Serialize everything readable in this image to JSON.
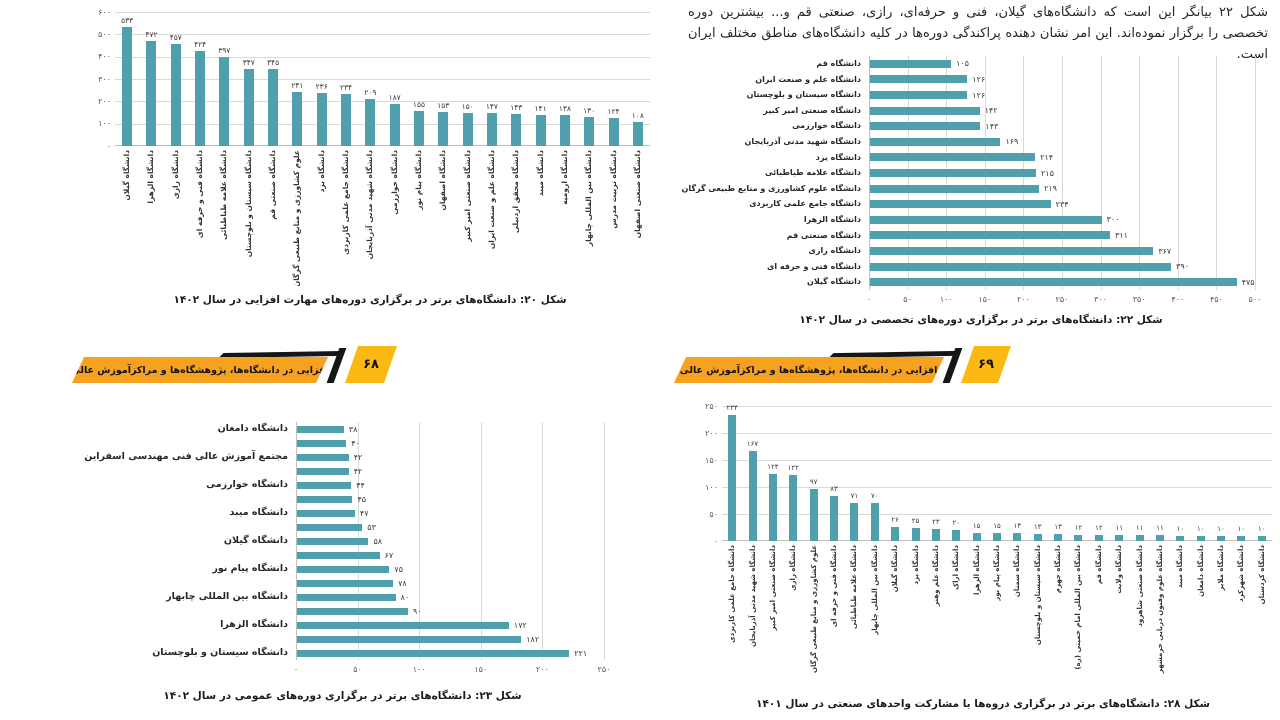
{
  "page": {
    "intro_text": "شکل ۲۲ بیانگر این است که دانشگاه‌های گیلان، فنی و حرفه‌ای، رازی، صنعتی قم و... بیشترین دوره تخصصی را برگزار نموده‌اند. این امر نشان دهنده پراکندگی دوره‌ها در کلیه دانشگاه‌های مناطق مختلف ایران است.",
    "banners": [
      {
        "label": "مهارت‌افزایی در دانشگاه‌ها، پژوهشگاه‌ها و مراکزآموزش عالی کشور",
        "page_number": "۶۸"
      },
      {
        "label": "مهارت‌افزایی در دانشگاه‌ها، پژوهشگاه‌ها و مراکزآموزش عالی کشور",
        "page_number": "۶۹"
      }
    ],
    "colors": {
      "bar": "#4f9fac",
      "banner_orange": "#f6a21e",
      "banner_yellow": "#fcb813",
      "grid": "#d9d9d9"
    }
  },
  "chart_data": [
    {
      "id": "fig20",
      "type": "bar",
      "orientation": "vertical",
      "caption": "شکل ۲۰: دانشگاه‌های برتر در برگزاری دوره‌های مهارت افزایی در سال ۱۴۰۲",
      "categories": [
        "دانشگاه گیلان",
        "دانشگاه الزهرا",
        "دانشگاه رازی",
        "دانشگاه فنی و حرفه ای",
        "دانشگاه علامه طباطبائی",
        "دانشگاه سیستان و بلوچستان",
        "دانشگاه صنعتی قم",
        "علوم کشاورزی و منابع طبیعی گرگان",
        "دانشگاه یزد",
        "دانشگاه جامع علمی کاربردی",
        "دانشگاه شهید مدنی آذربایجان",
        "دانشگاه خوارزمی",
        "دانشگاه پیام نور",
        "دانشگاه اصفهان",
        "دانشگاه صنعتی امیر کبیر",
        "دانشگاه علم و صنعت ایران",
        "دانشگاه محقق اردبیلی",
        "دانشگاه میبد",
        "دانشگاه ارومیه",
        "دانشگاه بین المللی چابهار",
        "دانشگاه تربیت مدرس",
        "دانشگاه صنعتی اصفهان"
      ],
      "values": [
        533,
        472,
        457,
        424,
        397,
        347,
        345,
        241,
        236,
        234,
        209,
        187,
        155,
        153,
        150,
        147,
        143,
        141,
        138,
        130,
        124,
        108
      ],
      "ylim": [
        0,
        600
      ],
      "yticks": [
        0,
        100,
        200,
        300,
        400,
        500,
        600
      ],
      "grid": true,
      "legend": "none"
    },
    {
      "id": "fig22",
      "type": "bar",
      "orientation": "horizontal",
      "caption": "شکل ۲۲: دانشگاه‌های برتر در برگزاری دوره‌های تخصصی در سال ۱۴۰۲",
      "categories": [
        "دانشگاه قم",
        "دانشگاه علم و صنعت ایران",
        "دانشگاه سیستان و بلوچستان",
        "دانشگاه صنعتی امیر کبیر",
        "دانشگاه خوارزمی",
        "دانشگاه شهید مدنی آذربایجان",
        "دانشگاه یزد",
        "دانشگاه علامه طباطبائی",
        "دانشگاه علوم کشاورزی و منابع طبیعی گرگان",
        "دانشگاه جامع علمی کاربردی",
        "دانشگاه الزهرا",
        "دانشگاه صنعتی قم",
        "دانشگاه رازی",
        "دانشگاه فنی و حرفه ای",
        "دانشگاه گیلان"
      ],
      "values": [
        105,
        126,
        126,
        142,
        143,
        169,
        214,
        215,
        219,
        234,
        300,
        311,
        367,
        390,
        475
      ],
      "xlim": [
        0,
        500
      ],
      "xticks": [
        0,
        50,
        100,
        150,
        200,
        250,
        300,
        350,
        400,
        450,
        500
      ],
      "grid": true,
      "legend": "none"
    },
    {
      "id": "fig23",
      "type": "bar",
      "orientation": "horizontal",
      "caption": "شکل ۲۳: دانشگاه‌های برتر در برگزاری دوره‌های عمومی در سال ۱۴۰۲",
      "categories": [
        "دانشگاه دامغان",
        "",
        "مجتمع آموزش عالی فنی مهندسی اسفراین",
        "",
        "دانشگاه خوارزمی",
        "",
        "دانشگاه میبد",
        "",
        "دانشگاه گیلان",
        "",
        "دانشگاه پیام نور",
        "",
        "دانشگاه بین المللی چابهار",
        "",
        "دانشگاه الزهرا",
        "",
        "دانشگاه سیستان و بلوچستان"
      ],
      "values": [
        38,
        40,
        42,
        42,
        44,
        45,
        47,
        53,
        58,
        67,
        75,
        78,
        80,
        90,
        172,
        182,
        221
      ],
      "xlim": [
        0,
        250
      ],
      "xticks": [
        0,
        50,
        100,
        150,
        200,
        250
      ],
      "grid": true,
      "legend": "none"
    },
    {
      "id": "fig28",
      "type": "bar",
      "orientation": "vertical",
      "caption": "شکل ۲۸: دانشگاه‌های برتر در برگزاری دروه‌ها با مشارکت واحدهای صنعتی در سال ۱۴۰۱",
      "categories": [
        "دانشگاه جامع علمی کاربردی",
        "دانشگاه شهید مدنی آذربایجان",
        "دانشگاه صنعتی امیر کبیر",
        "دانشگاه رازی",
        "علوم کشاورزی و منابع طبیعی گرگان",
        "دانشگاه فنی و حرفه ای",
        "دانشگاه علامه طباطبائی",
        "دانشگاه بین المللی چابهار",
        "دانشگاه گیلان",
        "دانشگاه یزد",
        "دانشگاه علم وهنر",
        "دانشگاه اراک",
        "دانشگاه الزهرا",
        "دانشگاه پیام نور",
        "دانشگاه سمنان",
        "دانشگاه سیستان و بلوچستان",
        "دانشگاه جهرم",
        "دانشگاه بین المللی امام خمینی (ره)",
        "دانشگاه قم",
        "دانشگاه ولایت",
        "دانشگاه صنعتی شاهرود",
        "دانشگاه علوم وفنون دریایی خرمشهر",
        "دانشگاه میبد",
        "دانشگاه دامغان",
        "دانشگاه ملایر",
        "دانشگاه شهرکرد",
        "دانشگاه کردستان"
      ],
      "values": [
        234,
        167,
        124,
        122,
        97,
        83,
        71,
        70,
        26,
        25,
        23,
        20,
        15,
        15,
        14,
        13,
        13,
        12,
        12,
        11,
        11,
        11,
        10,
        10,
        10,
        10,
        10
      ],
      "ylim": [
        0,
        250
      ],
      "yticks": [
        0,
        50,
        100,
        150,
        200,
        250
      ],
      "grid": true,
      "legend": "none"
    }
  ]
}
